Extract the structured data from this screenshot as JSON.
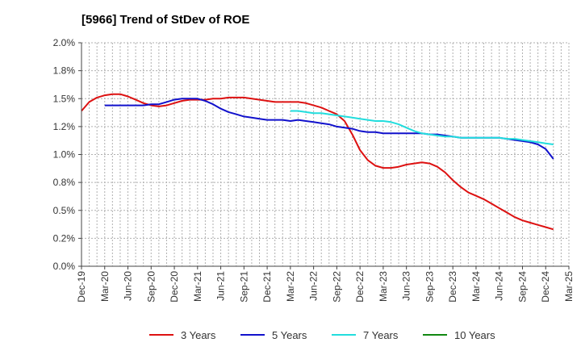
{
  "chart_data": {
    "type": "line",
    "title": "[5966]  Trend of StDev of ROE",
    "xlabel": "",
    "ylabel": "",
    "ylim": [
      0,
      0.02
    ],
    "yticks": [
      0,
      0.0025,
      0.005,
      0.0075,
      0.01,
      0.0125,
      0.015,
      0.0175,
      0.02
    ],
    "ytick_labels": [
      "0.0%",
      "0.2%",
      "0.5%",
      "0.8%",
      "1.0%",
      "1.2%",
      "1.5%",
      "1.8%",
      "2.0%"
    ],
    "x_range": [
      "2019-12",
      "2025-03"
    ],
    "xtick_labels": [
      "Dec-19",
      "Mar-20",
      "Jun-20",
      "Sep-20",
      "Dec-20",
      "Mar-21",
      "Jun-21",
      "Sep-21",
      "Dec-21",
      "Mar-22",
      "Jun-22",
      "Sep-22",
      "Dec-22",
      "Mar-23",
      "Jun-23",
      "Sep-23",
      "Dec-23",
      "Mar-24",
      "Jun-24",
      "Sep-24",
      "Dec-24",
      "Mar-25"
    ],
    "grid": true,
    "legend_position": "bottom",
    "series": [
      {
        "name": "3 Years",
        "color": "#dd1111",
        "points": [
          [
            "2019-12",
            0.0139
          ],
          [
            "2020-01",
            0.0147
          ],
          [
            "2020-02",
            0.0151
          ],
          [
            "2020-03",
            0.0153
          ],
          [
            "2020-04",
            0.0154
          ],
          [
            "2020-05",
            0.0154
          ],
          [
            "2020-06",
            0.0152
          ],
          [
            "2020-07",
            0.0149
          ],
          [
            "2020-08",
            0.0146
          ],
          [
            "2020-09",
            0.0144
          ],
          [
            "2020-10",
            0.0143
          ],
          [
            "2020-11",
            0.0144
          ],
          [
            "2020-12",
            0.0146
          ],
          [
            "2021-01",
            0.0148
          ],
          [
            "2021-02",
            0.0149
          ],
          [
            "2021-03",
            0.0149
          ],
          [
            "2021-04",
            0.0149
          ],
          [
            "2021-05",
            0.015
          ],
          [
            "2021-06",
            0.015
          ],
          [
            "2021-07",
            0.0151
          ],
          [
            "2021-08",
            0.0151
          ],
          [
            "2021-09",
            0.0151
          ],
          [
            "2021-10",
            0.015
          ],
          [
            "2021-11",
            0.0149
          ],
          [
            "2021-12",
            0.0148
          ],
          [
            "2022-01",
            0.0147
          ],
          [
            "2022-02",
            0.0147
          ],
          [
            "2022-03",
            0.0147
          ],
          [
            "2022-04",
            0.0147
          ],
          [
            "2022-05",
            0.0146
          ],
          [
            "2022-06",
            0.0144
          ],
          [
            "2022-07",
            0.0142
          ],
          [
            "2022-08",
            0.0139
          ],
          [
            "2022-09",
            0.0136
          ],
          [
            "2022-10",
            0.013
          ],
          [
            "2022-11",
            0.0118
          ],
          [
            "2022-12",
            0.0104
          ],
          [
            "2023-01",
            0.0095
          ],
          [
            "2023-02",
            0.009
          ],
          [
            "2023-03",
            0.0088
          ],
          [
            "2023-04",
            0.0088
          ],
          [
            "2023-05",
            0.0089
          ],
          [
            "2023-06",
            0.0091
          ],
          [
            "2023-07",
            0.0092
          ],
          [
            "2023-08",
            0.0093
          ],
          [
            "2023-09",
            0.0092
          ],
          [
            "2023-10",
            0.0089
          ],
          [
            "2023-11",
            0.0084
          ],
          [
            "2023-12",
            0.0077
          ],
          [
            "2024-01",
            0.0071
          ],
          [
            "2024-02",
            0.0066
          ],
          [
            "2024-03",
            0.0063
          ],
          [
            "2024-04",
            0.006
          ],
          [
            "2024-05",
            0.0056
          ],
          [
            "2024-06",
            0.0052
          ],
          [
            "2024-07",
            0.0048
          ],
          [
            "2024-08",
            0.0044
          ],
          [
            "2024-09",
            0.0041
          ],
          [
            "2024-10",
            0.0039
          ],
          [
            "2024-11",
            0.0037
          ],
          [
            "2024-12",
            0.0035
          ],
          [
            "2025-01",
            0.0033
          ]
        ]
      },
      {
        "name": "5 Years",
        "color": "#1111cc",
        "points": [
          [
            "2020-03",
            0.0144
          ],
          [
            "2020-04",
            0.0144
          ],
          [
            "2020-05",
            0.0144
          ],
          [
            "2020-06",
            0.0144
          ],
          [
            "2020-07",
            0.0144
          ],
          [
            "2020-08",
            0.0144
          ],
          [
            "2020-09",
            0.0145
          ],
          [
            "2020-10",
            0.0145
          ],
          [
            "2020-11",
            0.0147
          ],
          [
            "2020-12",
            0.0149
          ],
          [
            "2021-01",
            0.015
          ],
          [
            "2021-02",
            0.015
          ],
          [
            "2021-03",
            0.015
          ],
          [
            "2021-04",
            0.0148
          ],
          [
            "2021-05",
            0.0145
          ],
          [
            "2021-06",
            0.0141
          ],
          [
            "2021-07",
            0.0138
          ],
          [
            "2021-08",
            0.0136
          ],
          [
            "2021-09",
            0.0134
          ],
          [
            "2021-10",
            0.0133
          ],
          [
            "2021-11",
            0.0132
          ],
          [
            "2021-12",
            0.0131
          ],
          [
            "2022-01",
            0.0131
          ],
          [
            "2022-02",
            0.0131
          ],
          [
            "2022-03",
            0.013
          ],
          [
            "2022-04",
            0.0131
          ],
          [
            "2022-05",
            0.013
          ],
          [
            "2022-06",
            0.0129
          ],
          [
            "2022-07",
            0.0128
          ],
          [
            "2022-08",
            0.0127
          ],
          [
            "2022-09",
            0.0125
          ],
          [
            "2022-10",
            0.0124
          ],
          [
            "2022-11",
            0.0123
          ],
          [
            "2022-12",
            0.0121
          ],
          [
            "2023-01",
            0.012
          ],
          [
            "2023-02",
            0.012
          ],
          [
            "2023-03",
            0.0119
          ],
          [
            "2023-04",
            0.0119
          ],
          [
            "2023-05",
            0.0119
          ],
          [
            "2023-06",
            0.0119
          ],
          [
            "2023-07",
            0.0119
          ],
          [
            "2023-08",
            0.0119
          ],
          [
            "2023-09",
            0.0118
          ],
          [
            "2023-10",
            0.0118
          ],
          [
            "2023-11",
            0.0117
          ],
          [
            "2023-12",
            0.0116
          ],
          [
            "2024-01",
            0.0115
          ],
          [
            "2024-02",
            0.0115
          ],
          [
            "2024-03",
            0.0115
          ],
          [
            "2024-04",
            0.0115
          ],
          [
            "2024-05",
            0.0115
          ],
          [
            "2024-06",
            0.0115
          ],
          [
            "2024-07",
            0.0114
          ],
          [
            "2024-08",
            0.0113
          ],
          [
            "2024-09",
            0.0112
          ],
          [
            "2024-10",
            0.0111
          ],
          [
            "2024-11",
            0.0109
          ],
          [
            "2024-12",
            0.0105
          ],
          [
            "2025-01",
            0.0096
          ]
        ]
      },
      {
        "name": "7 Years",
        "color": "#22dddd",
        "points": [
          [
            "2022-03",
            0.0139
          ],
          [
            "2022-04",
            0.0139
          ],
          [
            "2022-05",
            0.0138
          ],
          [
            "2022-06",
            0.0137
          ],
          [
            "2022-07",
            0.0137
          ],
          [
            "2022-08",
            0.0136
          ],
          [
            "2022-09",
            0.0135
          ],
          [
            "2022-10",
            0.0134
          ],
          [
            "2022-11",
            0.0133
          ],
          [
            "2022-12",
            0.0132
          ],
          [
            "2023-01",
            0.0131
          ],
          [
            "2023-02",
            0.013
          ],
          [
            "2023-03",
            0.013
          ],
          [
            "2023-04",
            0.0129
          ],
          [
            "2023-05",
            0.0127
          ],
          [
            "2023-06",
            0.0124
          ],
          [
            "2023-07",
            0.0121
          ],
          [
            "2023-08",
            0.0119
          ],
          [
            "2023-09",
            0.0118
          ],
          [
            "2023-10",
            0.0117
          ],
          [
            "2023-11",
            0.0116
          ],
          [
            "2023-12",
            0.0116
          ],
          [
            "2024-01",
            0.0115
          ],
          [
            "2024-02",
            0.0115
          ],
          [
            "2024-03",
            0.0115
          ],
          [
            "2024-04",
            0.0115
          ],
          [
            "2024-05",
            0.0115
          ],
          [
            "2024-06",
            0.0115
          ],
          [
            "2024-07",
            0.0114
          ],
          [
            "2024-08",
            0.0114
          ],
          [
            "2024-09",
            0.0113
          ],
          [
            "2024-10",
            0.0112
          ],
          [
            "2024-11",
            0.0111
          ],
          [
            "2024-12",
            0.011
          ],
          [
            "2025-01",
            0.0109
          ]
        ]
      },
      {
        "name": "10 Years",
        "color": "#118811",
        "points": []
      }
    ]
  }
}
